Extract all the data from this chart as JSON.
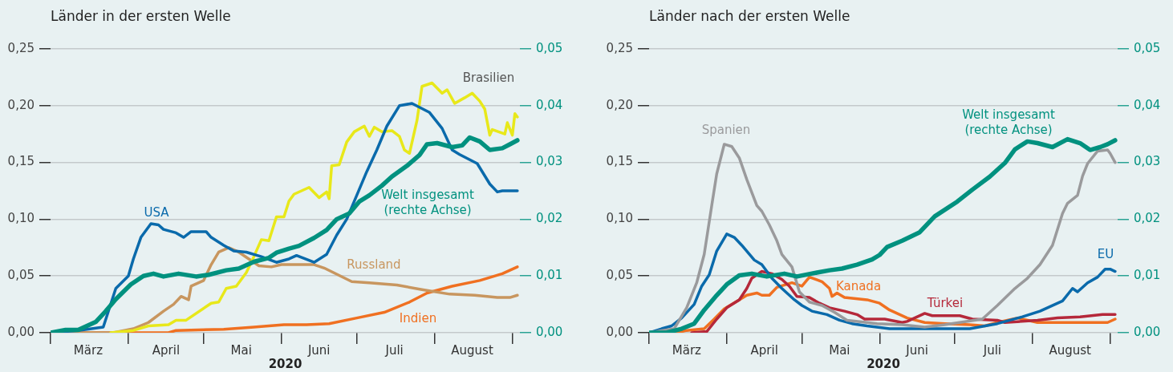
{
  "chart_data": [
    {
      "type": "line",
      "title": "Länder in der ersten Welle",
      "xlabel": "2020",
      "grid": "y",
      "xlim": [
        "2020-03-01",
        "2020-09-04"
      ],
      "xticks": [
        {
          "value": "2020-03-01",
          "label": null
        },
        {
          "value": "2020-03-16",
          "label": "März"
        },
        {
          "value": "2020-04-01",
          "label": null
        },
        {
          "value": "2020-04-16",
          "label": "April"
        },
        {
          "value": "2020-05-01",
          "label": null
        },
        {
          "value": "2020-05-16",
          "label": "Mai"
        },
        {
          "value": "2020-06-01",
          "label": null
        },
        {
          "value": "2020-06-16",
          "label": "Juni"
        },
        {
          "value": "2020-07-01",
          "label": null
        },
        {
          "value": "2020-07-16",
          "label": "Juli"
        },
        {
          "value": "2020-08-01",
          "label": null
        },
        {
          "value": "2020-08-16",
          "label": "August"
        },
        {
          "value": "2020-09-01",
          "label": null
        }
      ],
      "ylim": [
        0,
        0.25
      ],
      "yticks": [
        {
          "value": 0,
          "label": "0,00"
        },
        {
          "value": 0.05,
          "label": "0,05"
        },
        {
          "value": 0.1,
          "label": "0,10"
        },
        {
          "value": 0.15,
          "label": "0,15"
        },
        {
          "value": 0.2,
          "label": "0,20"
        },
        {
          "value": 0.25,
          "label": "0,25"
        }
      ],
      "y2lim": [
        0,
        0.05
      ],
      "y2ticks": [
        {
          "value": 0,
          "label": "0,00"
        },
        {
          "value": 0.01,
          "label": "0,01"
        },
        {
          "value": 0.02,
          "label": "0,02"
        },
        {
          "value": 0.03,
          "label": "0,03"
        },
        {
          "value": 0.04,
          "label": "0,04"
        },
        {
          "value": 0.05,
          "label": "0,05"
        }
      ],
      "series": [
        {
          "name": "USA",
          "color": "#0a6aab",
          "x": [
            "2020-03-01",
            "2020-03-12",
            "2020-03-22",
            "2020-03-27",
            "2020-04-01",
            "2020-04-03",
            "2020-04-06",
            "2020-04-10",
            "2020-04-13",
            "2020-04-15",
            "2020-04-20",
            "2020-04-23",
            "2020-04-26",
            "2020-05-02",
            "2020-05-04",
            "2020-05-09",
            "2020-05-13",
            "2020-05-18",
            "2020-05-24",
            "2020-05-30",
            "2020-06-04",
            "2020-06-07",
            "2020-06-14",
            "2020-06-19",
            "2020-06-23",
            "2020-06-27",
            "2020-07-01",
            "2020-07-05",
            "2020-07-09",
            "2020-07-13",
            "2020-07-18",
            "2020-07-23",
            "2020-07-30",
            "2020-08-04",
            "2020-08-08",
            "2020-08-11",
            "2020-08-18",
            "2020-08-23",
            "2020-08-26",
            "2020-08-28",
            "2020-09-03"
          ],
          "values": [
            0,
            0.002,
            0.005,
            0.039,
            0.05,
            0.065,
            0.084,
            0.096,
            0.095,
            0.091,
            0.088,
            0.084,
            0.089,
            0.089,
            0.084,
            0.077,
            0.072,
            0.071,
            0.067,
            0.062,
            0.065,
            0.068,
            0.062,
            0.069,
            0.086,
            0.1,
            0.121,
            0.142,
            0.161,
            0.182,
            0.2,
            0.202,
            0.194,
            0.18,
            0.161,
            0.157,
            0.149,
            0.131,
            0.124,
            0.125,
            0.125
          ]
        },
        {
          "name": "Brasilien",
          "color": "#e8e81a",
          "x": [
            "2020-03-25",
            "2020-04-03",
            "2020-04-09",
            "2020-04-17",
            "2020-04-20",
            "2020-04-24",
            "2020-05-04",
            "2020-05-07",
            "2020-05-10",
            "2020-05-14",
            "2020-05-18",
            "2020-05-21",
            "2020-05-24",
            "2020-05-27",
            "2020-05-30",
            "2020-06-02",
            "2020-06-04",
            "2020-06-06",
            "2020-06-12",
            "2020-06-16",
            "2020-06-19",
            "2020-06-20",
            "2020-06-21",
            "2020-06-24",
            "2020-06-27",
            "2020-06-30",
            "2020-07-04",
            "2020-07-06",
            "2020-07-08",
            "2020-07-11",
            "2020-07-15",
            "2020-07-18",
            "2020-07-20",
            "2020-07-22",
            "2020-07-25",
            "2020-07-27",
            "2020-07-31",
            "2020-08-04",
            "2020-08-06",
            "2020-08-09",
            "2020-08-13",
            "2020-08-16",
            "2020-08-19",
            "2020-08-21",
            "2020-08-23",
            "2020-08-24",
            "2020-08-29",
            "2020-08-30",
            "2020-09-01",
            "2020-09-02",
            "2020-09-03"
          ],
          "values": [
            0,
            0.002,
            0.006,
            0.007,
            0.011,
            0.011,
            0.026,
            0.027,
            0.039,
            0.041,
            0.053,
            0.067,
            0.082,
            0.081,
            0.102,
            0.102,
            0.116,
            0.122,
            0.128,
            0.119,
            0.124,
            0.118,
            0.147,
            0.148,
            0.168,
            0.177,
            0.182,
            0.173,
            0.181,
            0.177,
            0.178,
            0.173,
            0.161,
            0.158,
            0.187,
            0.217,
            0.22,
            0.211,
            0.214,
            0.202,
            0.207,
            0.211,
            0.204,
            0.197,
            0.174,
            0.179,
            0.175,
            0.185,
            0.174,
            0.193,
            0.19
          ]
        },
        {
          "name": "Welt insgesamt (rechte Achse)",
          "color": "#00917f",
          "axis": "y2",
          "x": [
            "2020-03-01",
            "2020-03-07",
            "2020-03-12",
            "2020-03-19",
            "2020-03-23",
            "2020-03-27",
            "2020-04-02",
            "2020-04-07",
            "2020-04-11",
            "2020-04-15",
            "2020-04-21",
            "2020-04-28",
            "2020-05-03",
            "2020-05-10",
            "2020-05-15",
            "2020-05-21",
            "2020-05-27",
            "2020-05-30",
            "2020-06-04",
            "2020-06-08",
            "2020-06-14",
            "2020-06-19",
            "2020-06-23",
            "2020-06-28",
            "2020-07-02",
            "2020-07-06",
            "2020-07-11",
            "2020-07-15",
            "2020-07-21",
            "2020-07-26",
            "2020-07-29",
            "2020-08-02",
            "2020-08-08",
            "2020-08-12",
            "2020-08-15",
            "2020-08-19",
            "2020-08-23",
            "2020-08-28",
            "2020-08-31",
            "2020-09-03"
          ],
          "values": [
            0,
            0.0005,
            0.0005,
            0.0019,
            0.0038,
            0.0059,
            0.0085,
            0.01,
            0.0104,
            0.0099,
            0.0104,
            0.0099,
            0.0102,
            0.011,
            0.0113,
            0.0125,
            0.0132,
            0.0141,
            0.0148,
            0.0153,
            0.0167,
            0.0181,
            0.02,
            0.021,
            0.0231,
            0.0242,
            0.0259,
            0.0275,
            0.0294,
            0.0313,
            0.0332,
            0.0334,
            0.0327,
            0.033,
            0.0344,
            0.0337,
            0.0322,
            0.0325,
            0.0332,
            0.0339
          ]
        },
        {
          "name": "Russland",
          "color": "#c8965f",
          "x": [
            "2020-03-08",
            "2020-03-26",
            "2020-04-03",
            "2020-04-09",
            "2020-04-15",
            "2020-04-19",
            "2020-04-22",
            "2020-04-25",
            "2020-04-26",
            "2020-05-01",
            "2020-05-04",
            "2020-05-07",
            "2020-05-11",
            "2020-05-15",
            "2020-05-19",
            "2020-05-23",
            "2020-05-28",
            "2020-06-01",
            "2020-06-14",
            "2020-06-18",
            "2020-06-29",
            "2020-07-06",
            "2020-07-17",
            "2020-07-27",
            "2020-08-07",
            "2020-08-17",
            "2020-08-26",
            "2020-08-31",
            "2020-09-03"
          ],
          "values": [
            0,
            0,
            0.0035,
            0.009,
            0.019,
            0.025,
            0.032,
            0.029,
            0.041,
            0.046,
            0.06,
            0.071,
            0.075,
            0.071,
            0.065,
            0.059,
            0.058,
            0.06,
            0.06,
            0.057,
            0.045,
            0.044,
            0.042,
            0.038,
            0.034,
            0.033,
            0.031,
            0.031,
            0.033
          ]
        },
        {
          "name": "Indien",
          "color": "#f07021",
          "x": [
            "2020-03-01",
            "2020-04-17",
            "2020-04-20",
            "2020-05-09",
            "2020-05-21",
            "2020-06-02",
            "2020-06-11",
            "2020-06-20",
            "2020-07-01",
            "2020-07-12",
            "2020-07-22",
            "2020-07-29",
            "2020-08-08",
            "2020-08-19",
            "2020-08-28",
            "2020-09-03"
          ],
          "values": [
            0,
            0,
            0.002,
            0.003,
            0.005,
            0.007,
            0.007,
            0.008,
            0.013,
            0.018,
            0.027,
            0.035,
            0.041,
            0.046,
            0.052,
            0.058
          ]
        }
      ]
    },
    {
      "type": "line",
      "title": "Länder nach der ersten Welle",
      "xlabel": "2020",
      "grid": "y",
      "xlim": [
        "2020-03-01",
        "2020-09-04"
      ],
      "xticks": [
        {
          "value": "2020-03-01",
          "label": null
        },
        {
          "value": "2020-03-16",
          "label": "März"
        },
        {
          "value": "2020-04-01",
          "label": null
        },
        {
          "value": "2020-04-16",
          "label": "April"
        },
        {
          "value": "2020-05-01",
          "label": null
        },
        {
          "value": "2020-05-16",
          "label": "Mai"
        },
        {
          "value": "2020-06-01",
          "label": null
        },
        {
          "value": "2020-06-16",
          "label": "Juni"
        },
        {
          "value": "2020-07-01",
          "label": null
        },
        {
          "value": "2020-07-16",
          "label": "Juli"
        },
        {
          "value": "2020-08-01",
          "label": null
        },
        {
          "value": "2020-08-16",
          "label": "August"
        },
        {
          "value": "2020-09-01",
          "label": null
        }
      ],
      "ylim": [
        0,
        0.25
      ],
      "yticks": [
        {
          "value": 0,
          "label": "0,00"
        },
        {
          "value": 0.05,
          "label": "0,05"
        },
        {
          "value": 0.1,
          "label": "0,10"
        },
        {
          "value": 0.15,
          "label": "0,15"
        },
        {
          "value": 0.2,
          "label": "0,20"
        },
        {
          "value": 0.25,
          "label": "0,25"
        }
      ],
      "y2lim": [
        0,
        0.05
      ],
      "y2ticks": [
        {
          "value": 0,
          "label": "0,00"
        },
        {
          "value": 0.01,
          "label": "0,01"
        },
        {
          "value": 0.02,
          "label": "0,02"
        },
        {
          "value": 0.03,
          "label": "0,03"
        },
        {
          "value": 0.04,
          "label": "0,04"
        },
        {
          "value": 0.05,
          "label": "0,05"
        }
      ],
      "series": [
        {
          "name": "Spanien",
          "color": "#9a9a9c",
          "x": [
            "2020-03-01",
            "2020-03-11",
            "2020-03-16",
            "2020-03-20",
            "2020-03-23",
            "2020-03-26",
            "2020-03-28",
            "2020-03-31",
            "2020-04-03",
            "2020-04-06",
            "2020-04-09",
            "2020-04-13",
            "2020-04-15",
            "2020-04-18",
            "2020-04-21",
            "2020-04-23",
            "2020-04-27",
            "2020-04-30",
            "2020-05-04",
            "2020-05-09",
            "2020-05-14",
            "2020-05-19",
            "2020-05-27",
            "2020-05-31",
            "2020-06-10",
            "2020-06-19",
            "2020-06-27",
            "2020-07-12",
            "2020-07-18",
            "2020-07-25",
            "2020-07-30",
            "2020-08-04",
            "2020-08-09",
            "2020-08-13",
            "2020-08-15",
            "2020-08-19",
            "2020-08-21",
            "2020-08-23",
            "2020-08-27",
            "2020-08-31",
            "2020-09-01",
            "2020-09-03"
          ],
          "values": [
            0,
            0.0035,
            0.022,
            0.044,
            0.069,
            0.112,
            0.14,
            0.166,
            0.164,
            0.154,
            0.135,
            0.112,
            0.107,
            0.095,
            0.081,
            0.069,
            0.058,
            0.036,
            0.027,
            0.024,
            0.018,
            0.011,
            0.009,
            0.008,
            0.007,
            0.005,
            0.007,
            0.012,
            0.024,
            0.039,
            0.048,
            0.06,
            0.077,
            0.105,
            0.114,
            0.121,
            0.138,
            0.149,
            0.16,
            0.161,
            0.158,
            0.15
          ]
        },
        {
          "name": "EU",
          "color": "#0a6aab",
          "x": [
            "2020-03-01",
            "2020-03-06",
            "2020-03-10",
            "2020-03-14",
            "2020-03-19",
            "2020-03-22",
            "2020-03-25",
            "2020-03-28",
            "2020-04-01",
            "2020-04-04",
            "2020-04-07",
            "2020-04-12",
            "2020-04-15",
            "2020-04-19",
            "2020-04-23",
            "2020-04-28",
            "2020-05-01",
            "2020-05-05",
            "2020-05-11",
            "2020-05-16",
            "2020-05-21",
            "2020-05-27",
            "2020-06-05",
            "2020-07-07",
            "2020-07-18",
            "2020-07-28",
            "2020-08-04",
            "2020-08-13",
            "2020-08-17",
            "2020-08-19",
            "2020-08-23",
            "2020-08-27",
            "2020-08-30",
            "2020-09-01",
            "2020-09-03"
          ],
          "values": [
            0,
            0.0035,
            0.006,
            0.013,
            0.025,
            0.041,
            0.051,
            0.072,
            0.087,
            0.084,
            0.077,
            0.064,
            0.06,
            0.048,
            0.039,
            0.029,
            0.024,
            0.019,
            0.016,
            0.011,
            0.008,
            0.006,
            0.0035,
            0.0035,
            0.008,
            0.014,
            0.019,
            0.028,
            0.039,
            0.036,
            0.044,
            0.049,
            0.056,
            0.056,
            0.054
          ]
        },
        {
          "name": "Türkei",
          "color": "#b5283a",
          "x": [
            "2020-03-18",
            "2020-03-24",
            "2020-03-28",
            "2020-04-01",
            "2020-04-06",
            "2020-04-09",
            "2020-04-11",
            "2020-04-15",
            "2020-04-19",
            "2020-04-23",
            "2020-04-26",
            "2020-04-29",
            "2020-05-04",
            "2020-05-08",
            "2020-05-12",
            "2020-05-18",
            "2020-05-23",
            "2020-05-26",
            "2020-06-03",
            "2020-06-10",
            "2020-06-12",
            "2020-06-19",
            "2020-06-22",
            "2020-07-03",
            "2020-07-08",
            "2020-07-18",
            "2020-07-21",
            "2020-08-03",
            "2020-08-11",
            "2020-08-20",
            "2020-08-29",
            "2020-09-03"
          ],
          "values": [
            0,
            0.001,
            0.012,
            0.022,
            0.029,
            0.039,
            0.048,
            0.054,
            0.052,
            0.047,
            0.041,
            0.032,
            0.031,
            0.026,
            0.022,
            0.019,
            0.016,
            0.012,
            0.012,
            0.009,
            0.01,
            0.017,
            0.015,
            0.015,
            0.012,
            0.011,
            0.009,
            0.011,
            0.013,
            0.014,
            0.016,
            0.016
          ]
        },
        {
          "name": "Kanada",
          "color": "#f07021",
          "x": [
            "2020-03-01",
            "2020-03-12",
            "2020-03-16",
            "2020-03-23",
            "2020-03-27",
            "2020-03-31",
            "2020-04-06",
            "2020-04-09",
            "2020-04-13",
            "2020-04-15",
            "2020-04-18",
            "2020-04-21",
            "2020-04-27",
            "2020-05-01",
            "2020-05-04",
            "2020-05-09",
            "2020-05-12",
            "2020-05-13",
            "2020-05-15",
            "2020-05-18",
            "2020-05-27",
            "2020-06-01",
            "2020-06-05",
            "2020-06-12",
            "2020-06-19",
            "2020-06-27",
            "2020-07-07",
            "2020-07-13",
            "2020-07-18",
            "2020-07-26",
            "2020-08-03",
            "2020-08-14",
            "2020-08-31",
            "2020-09-03"
          ],
          "values": [
            0,
            0,
            0.002,
            0.0035,
            0.012,
            0.021,
            0.029,
            0.033,
            0.035,
            0.033,
            0.033,
            0.04,
            0.044,
            0.041,
            0.049,
            0.045,
            0.039,
            0.032,
            0.035,
            0.031,
            0.029,
            0.026,
            0.02,
            0.013,
            0.009,
            0.008,
            0.007,
            0.006,
            0.009,
            0.013,
            0.009,
            0.009,
            0.009,
            0.012
          ]
        },
        {
          "name": "Welt insgesamt (rechte Achse)",
          "color": "#00917f",
          "axis": "y2",
          "x": [
            "2020-03-01",
            "2020-03-08",
            "2020-03-14",
            "2020-03-19",
            "2020-03-23",
            "2020-03-28",
            "2020-04-01",
            "2020-04-06",
            "2020-04-11",
            "2020-04-17",
            "2020-04-24",
            "2020-04-29",
            "2020-05-07",
            "2020-05-12",
            "2020-05-17",
            "2020-05-23",
            "2020-05-29",
            "2020-06-01",
            "2020-06-04",
            "2020-06-10",
            "2020-06-17",
            "2020-06-23",
            "2020-07-02",
            "2020-07-08",
            "2020-07-15",
            "2020-07-21",
            "2020-07-25",
            "2020-07-30",
            "2020-08-03",
            "2020-08-09",
            "2020-08-15",
            "2020-08-20",
            "2020-08-24",
            "2020-08-28",
            "2020-08-31",
            "2020-09-03"
          ],
          "values": [
            0,
            0,
            0.0007,
            0.0016,
            0.004,
            0.0066,
            0.0085,
            0.0101,
            0.0104,
            0.0099,
            0.0104,
            0.0099,
            0.0106,
            0.011,
            0.0113,
            0.012,
            0.0129,
            0.0137,
            0.0151,
            0.0162,
            0.0177,
            0.0205,
            0.0231,
            0.0252,
            0.0275,
            0.0299,
            0.0323,
            0.0337,
            0.0334,
            0.0327,
            0.0341,
            0.0334,
            0.0322,
            0.0327,
            0.0332,
            0.0339
          ]
        }
      ]
    }
  ]
}
